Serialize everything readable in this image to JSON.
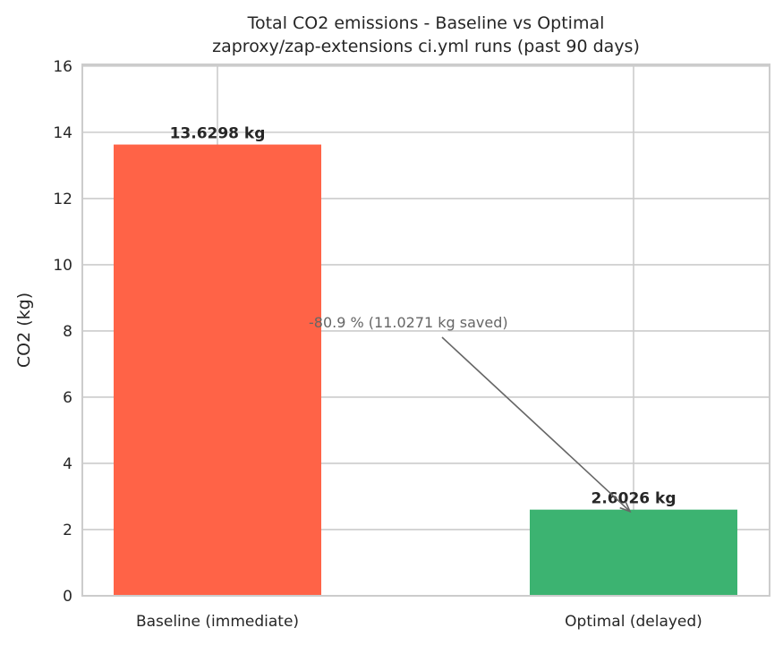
{
  "chart_data": {
    "type": "bar",
    "title": "Total CO2 emissions - Baseline vs Optimal\nzaproxy/zap-extensions ci.yml runs (past 90 days)",
    "title_lines": [
      "Total CO2 emissions - Baseline vs Optimal",
      "zaproxy/zap-extensions ci.yml runs (past 90 days)"
    ],
    "xlabel": "",
    "ylabel": "CO2 (kg)",
    "categories": [
      "Baseline (immediate)",
      "Optimal (delayed)"
    ],
    "values": [
      13.6298,
      2.6026
    ],
    "data_labels": [
      "13.6298 kg",
      "2.6026 kg"
    ],
    "colors": [
      "#FF6347",
      "#3CB371"
    ],
    "ylim": [
      0,
      16.05
    ],
    "yticks": [
      0,
      2,
      4,
      6,
      8,
      10,
      12,
      14,
      16
    ],
    "grid": true,
    "annotation": {
      "text": "-80.9 %  (11.0271 kg saved)",
      "arrow_to": {
        "category": "Optimal (delayed)",
        "value": 2.6026
      },
      "color": "#666666"
    }
  }
}
